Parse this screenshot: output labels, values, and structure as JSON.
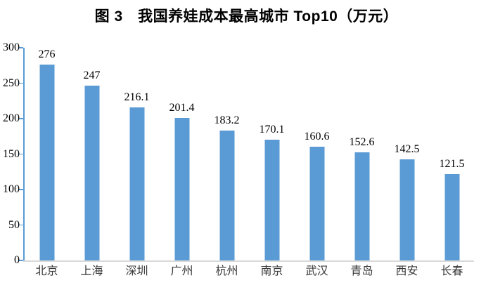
{
  "title": "图 3　我国养娃成本最高城市 Top10（万元）",
  "chart_data": {
    "type": "bar",
    "title": "图 3　我国养娃成本最高城市 Top10（万元）",
    "categories": [
      "北京",
      "上海",
      "深圳",
      "广州",
      "杭州",
      "南京",
      "武汉",
      "青岛",
      "西安",
      "长春"
    ],
    "values": [
      276,
      247,
      216.1,
      201.4,
      183.2,
      170.1,
      160.6,
      152.6,
      142.5,
      121.5
    ],
    "value_labels": [
      "276",
      "247",
      "216.1",
      "201.4",
      "183.2",
      "170.1",
      "160.6",
      "152.6",
      "142.5",
      "121.5"
    ],
    "xlabel": "",
    "ylabel": "",
    "ylim": [
      0,
      300
    ],
    "y_ticks": [
      0,
      50,
      100,
      150,
      200,
      250,
      300
    ],
    "grid": false,
    "legend": false,
    "bar_color": "#5B9BD5",
    "axis_color": "#5B9BD5",
    "baseline_color": "#D9D9D9",
    "title_color": "#000000",
    "label_color": "#000000",
    "category_label_color": "#383838"
  }
}
